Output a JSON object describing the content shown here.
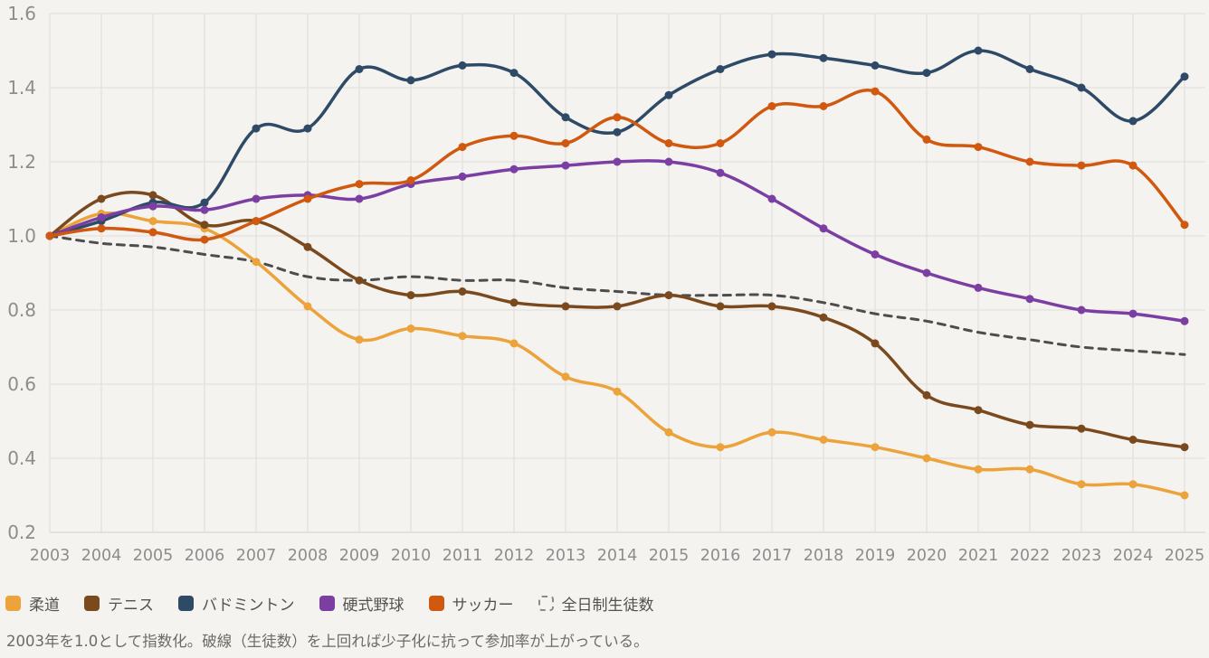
{
  "chart_data": {
    "type": "line",
    "title": "",
    "x": [
      2003,
      2004,
      2005,
      2006,
      2007,
      2008,
      2009,
      2010,
      2011,
      2012,
      2013,
      2014,
      2015,
      2016,
      2017,
      2018,
      2019,
      2020,
      2021,
      2022,
      2023,
      2024,
      2025
    ],
    "ylim": [
      0.2,
      1.6
    ],
    "yticks": [
      0.2,
      0.4,
      0.6,
      0.8,
      1.0,
      1.2,
      1.4,
      1.6
    ],
    "grid": true,
    "legend_position": "bottom",
    "series": [
      {
        "key": "judo",
        "name": "柔道",
        "color": "#eca33b",
        "style": "solid",
        "markers": true,
        "values": [
          1.0,
          1.06,
          1.04,
          1.02,
          0.93,
          0.81,
          0.72,
          0.75,
          0.73,
          0.71,
          0.62,
          0.58,
          0.47,
          0.43,
          0.47,
          0.45,
          0.43,
          0.4,
          0.37,
          0.37,
          0.33,
          0.33,
          0.3
        ]
      },
      {
        "key": "tennis",
        "name": "テニス",
        "color": "#7a4a1e",
        "style": "solid",
        "markers": true,
        "values": [
          1.0,
          1.1,
          1.11,
          1.03,
          1.04,
          0.97,
          0.88,
          0.84,
          0.85,
          0.82,
          0.81,
          0.81,
          0.84,
          0.81,
          0.81,
          0.78,
          0.71,
          0.57,
          0.53,
          0.49,
          0.48,
          0.45,
          0.43
        ]
      },
      {
        "key": "badminton",
        "name": "バドミントン",
        "color": "#2e4a66",
        "style": "solid",
        "markers": true,
        "values": [
          1.0,
          1.04,
          1.09,
          1.09,
          1.29,
          1.29,
          1.45,
          1.42,
          1.46,
          1.44,
          1.32,
          1.28,
          1.38,
          1.45,
          1.49,
          1.48,
          1.46,
          1.44,
          1.5,
          1.45,
          1.4,
          1.31,
          1.43
        ]
      },
      {
        "key": "baseball",
        "name": "硬式野球",
        "color": "#7b3fa3",
        "style": "solid",
        "markers": true,
        "values": [
          1.0,
          1.05,
          1.08,
          1.07,
          1.1,
          1.11,
          1.1,
          1.14,
          1.16,
          1.18,
          1.19,
          1.2,
          1.2,
          1.17,
          1.1,
          1.02,
          0.95,
          0.9,
          0.86,
          0.83,
          0.8,
          0.79,
          0.77
        ]
      },
      {
        "key": "soccer",
        "name": "サッカー",
        "color": "#d0580f",
        "style": "solid",
        "markers": true,
        "values": [
          1.0,
          1.02,
          1.01,
          0.99,
          1.04,
          1.1,
          1.14,
          1.15,
          1.24,
          1.27,
          1.25,
          1.32,
          1.25,
          1.25,
          1.35,
          1.35,
          1.39,
          1.26,
          1.24,
          1.2,
          1.19,
          1.19,
          1.03
        ]
      },
      {
        "key": "students",
        "name": "全日制生徒数",
        "color": "#4d4d4d",
        "style": "dashed",
        "markers": false,
        "values": [
          1.0,
          0.98,
          0.97,
          0.95,
          0.93,
          0.89,
          0.88,
          0.89,
          0.88,
          0.88,
          0.86,
          0.85,
          0.84,
          0.84,
          0.84,
          0.82,
          0.79,
          0.77,
          0.74,
          0.72,
          0.7,
          0.69,
          0.68
        ]
      }
    ],
    "caption": "2003年を1.0として指数化。破線（生徒数）を上回れば少子化に抗って参加率が上がっている。"
  },
  "colors": {
    "background": "#f4f3f0",
    "grid": "#e3e1dd",
    "axis_line": "#d8d6d1",
    "axis_label": "#8d8d8d",
    "legend_text": "#55524e",
    "legend_dashed_icon": "#8a8a8a",
    "caption_text": "#6e6a64"
  }
}
